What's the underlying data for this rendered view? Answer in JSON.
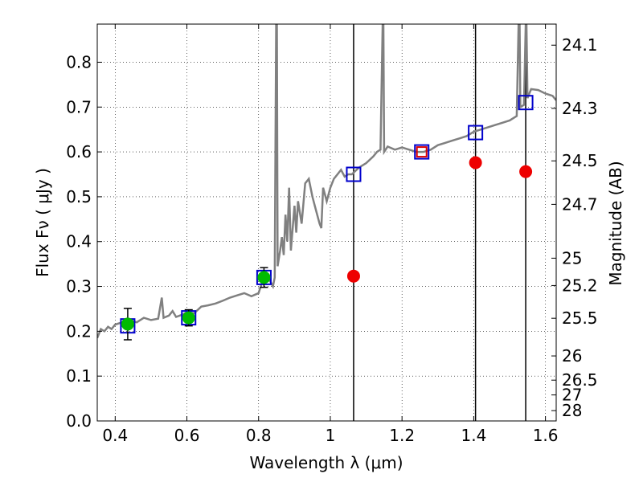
{
  "chart_data": {
    "type": "scatter",
    "xlabel": "Wavelength  λ (μm)",
    "ylabel": "Flux  Fν  ( μJy )",
    "ylabel_right": "Magnitude (AB)",
    "xlim": [
      0.35,
      1.63
    ],
    "ylim": [
      0.0,
      0.885
    ],
    "grid": true,
    "x_ticks": [
      0.4,
      0.6,
      0.8,
      1.0,
      1.2,
      1.4,
      1.6
    ],
    "x_tick_labels": [
      "0.4",
      "0.6",
      "0.8",
      "1",
      "1.2",
      "1.4",
      "1.6"
    ],
    "y_ticks": [
      0.0,
      0.1,
      0.2,
      0.3,
      0.4,
      0.5,
      0.6,
      0.7,
      0.8
    ],
    "y_tick_labels": [
      "0.0",
      "0.1",
      "0.2",
      "0.3",
      "0.4",
      "0.5",
      "0.6",
      "0.7",
      "0.8"
    ],
    "right_ticks": [
      {
        "flux": 0.838,
        "label": "24.1"
      },
      {
        "flux": 0.697,
        "label": "24.3"
      },
      {
        "flux": 0.58,
        "label": "24.5"
      },
      {
        "flux": 0.483,
        "label": "24.7"
      },
      {
        "flux": 0.363,
        "label": "25"
      },
      {
        "flux": 0.302,
        "label": "25.2"
      },
      {
        "flux": 0.229,
        "label": "25.5"
      },
      {
        "flux": 0.145,
        "label": "26"
      },
      {
        "flux": 0.091,
        "label": "26.5"
      },
      {
        "flux": 0.058,
        "label": "27"
      },
      {
        "flux": 0.023,
        "label": "28"
      }
    ],
    "vertical_lines": [
      1.065,
      1.405,
      1.545
    ],
    "series": [
      {
        "kind": "model_spectrum",
        "color": "#808080",
        "points": [
          [
            0.35,
            0.185
          ],
          [
            0.36,
            0.205
          ],
          [
            0.37,
            0.2
          ],
          [
            0.38,
            0.21
          ],
          [
            0.39,
            0.205
          ],
          [
            0.4,
            0.215
          ],
          [
            0.42,
            0.22
          ],
          [
            0.44,
            0.225
          ],
          [
            0.46,
            0.22
          ],
          [
            0.48,
            0.23
          ],
          [
            0.5,
            0.225
          ],
          [
            0.52,
            0.228
          ],
          [
            0.53,
            0.275
          ],
          [
            0.535,
            0.23
          ],
          [
            0.55,
            0.235
          ],
          [
            0.56,
            0.245
          ],
          [
            0.57,
            0.232
          ],
          [
            0.59,
            0.238
          ],
          [
            0.6,
            0.243
          ],
          [
            0.62,
            0.24
          ],
          [
            0.64,
            0.255
          ],
          [
            0.66,
            0.258
          ],
          [
            0.68,
            0.262
          ],
          [
            0.7,
            0.268
          ],
          [
            0.72,
            0.275
          ],
          [
            0.74,
            0.28
          ],
          [
            0.76,
            0.285
          ],
          [
            0.78,
            0.278
          ],
          [
            0.8,
            0.285
          ],
          [
            0.81,
            0.31
          ],
          [
            0.82,
            0.325
          ],
          [
            0.83,
            0.315
          ],
          [
            0.84,
            0.3
          ],
          [
            0.845,
            0.32
          ],
          [
            0.849,
            0.885
          ],
          [
            0.851,
            0.885
          ],
          [
            0.853,
            0.345
          ],
          [
            0.86,
            0.38
          ],
          [
            0.865,
            0.41
          ],
          [
            0.87,
            0.37
          ],
          [
            0.875,
            0.46
          ],
          [
            0.88,
            0.4
          ],
          [
            0.885,
            0.52
          ],
          [
            0.89,
            0.38
          ],
          [
            0.9,
            0.48
          ],
          [
            0.905,
            0.42
          ],
          [
            0.91,
            0.49
          ],
          [
            0.92,
            0.44
          ],
          [
            0.93,
            0.53
          ],
          [
            0.94,
            0.54
          ],
          [
            0.95,
            0.5
          ],
          [
            0.96,
            0.47
          ],
          [
            0.97,
            0.44
          ],
          [
            0.975,
            0.43
          ],
          [
            0.98,
            0.52
          ],
          [
            0.99,
            0.49
          ],
          [
            1.0,
            0.52
          ],
          [
            1.01,
            0.54
          ],
          [
            1.02,
            0.55
          ],
          [
            1.03,
            0.56
          ],
          [
            1.04,
            0.545
          ],
          [
            1.05,
            0.55
          ],
          [
            1.06,
            0.55
          ],
          [
            1.08,
            0.565
          ],
          [
            1.1,
            0.575
          ],
          [
            1.12,
            0.59
          ],
          [
            1.13,
            0.6
          ],
          [
            1.14,
            0.605
          ],
          [
            1.146,
            0.885
          ],
          [
            1.148,
            0.885
          ],
          [
            1.15,
            0.6
          ],
          [
            1.16,
            0.612
          ],
          [
            1.18,
            0.605
          ],
          [
            1.2,
            0.61
          ],
          [
            1.22,
            0.605
          ],
          [
            1.24,
            0.6
          ],
          [
            1.26,
            0.6
          ],
          [
            1.28,
            0.605
          ],
          [
            1.3,
            0.615
          ],
          [
            1.32,
            0.62
          ],
          [
            1.34,
            0.625
          ],
          [
            1.36,
            0.63
          ],
          [
            1.38,
            0.635
          ],
          [
            1.4,
            0.645
          ],
          [
            1.42,
            0.65
          ],
          [
            1.44,
            0.655
          ],
          [
            1.46,
            0.66
          ],
          [
            1.48,
            0.665
          ],
          [
            1.5,
            0.67
          ],
          [
            1.52,
            0.68
          ],
          [
            1.525,
            0.885
          ],
          [
            1.528,
            0.885
          ],
          [
            1.53,
            0.7
          ],
          [
            1.54,
            0.705
          ],
          [
            1.545,
            0.885
          ],
          [
            1.547,
            0.885
          ],
          [
            1.55,
            0.72
          ],
          [
            1.56,
            0.74
          ],
          [
            1.58,
            0.738
          ],
          [
            1.6,
            0.73
          ],
          [
            1.62,
            0.725
          ],
          [
            1.63,
            0.715
          ]
        ]
      },
      {
        "kind": "model_photometry",
        "marker": "open-square",
        "color": "#0000cc",
        "points": [
          [
            0.435,
            0.212
          ],
          [
            0.605,
            0.23
          ],
          [
            0.815,
            0.32
          ],
          [
            1.065,
            0.55
          ],
          [
            1.255,
            0.6
          ],
          [
            1.405,
            0.643
          ],
          [
            1.545,
            0.71
          ]
        ]
      },
      {
        "kind": "observed_detections",
        "marker": "filled-circle",
        "color": "#00bb00",
        "points": [
          [
            0.435,
            0.216,
            0.035
          ],
          [
            0.605,
            0.23,
            0.018
          ],
          [
            0.815,
            0.32,
            0.022
          ]
        ]
      },
      {
        "kind": "observed_red",
        "marker": "filled-circle",
        "color": "#ee0000",
        "points": [
          [
            1.065,
            0.323
          ],
          [
            1.405,
            0.576
          ],
          [
            1.545,
            0.556
          ]
        ]
      },
      {
        "kind": "highlight",
        "marker": "open-square",
        "color": "#dd0000",
        "points": [
          [
            1.255,
            0.6
          ]
        ]
      }
    ]
  }
}
